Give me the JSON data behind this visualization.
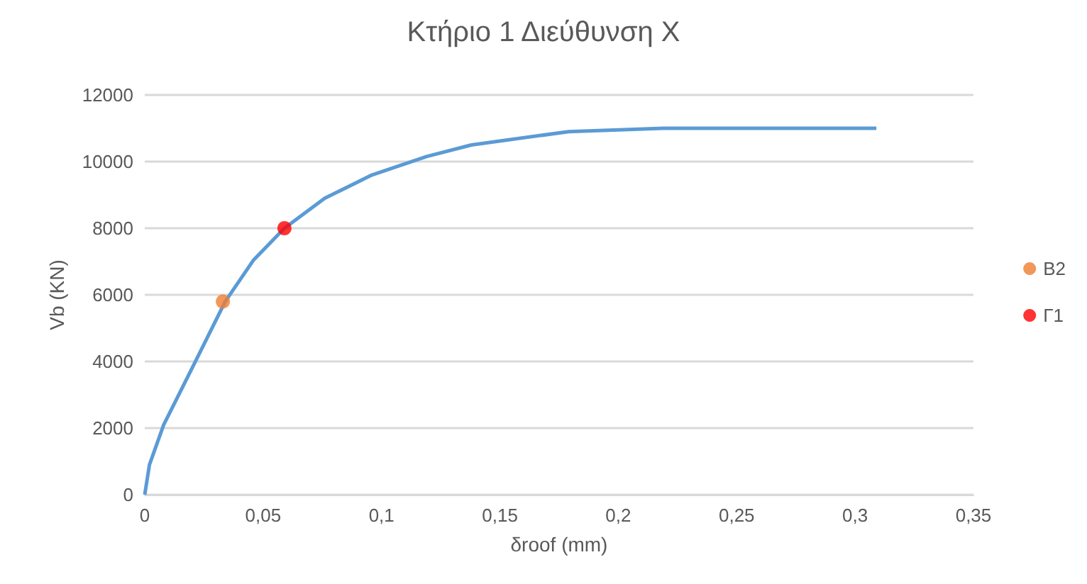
{
  "chart_data": {
    "type": "line",
    "title": "Κτήριο 1 Διεύθυνση Χ",
    "xlabel": "δroof (mm)",
    "ylabel": "Vb (KN)",
    "series": [
      {
        "marker": "none",
        "color": "#5b9bd5",
        "x": [
          0,
          0.002,
          0.008,
          0.02,
          0.034,
          0.046,
          0.059,
          0.076,
          0.096,
          0.119,
          0.138,
          0.179,
          0.219,
          0.258,
          0.279,
          0.309
        ],
        "values": [
          0,
          900,
          2100,
          3800,
          5800,
          7050,
          8000,
          8900,
          9600,
          10150,
          10500,
          10900,
          11000,
          11000,
          11000,
          11000
        ]
      },
      {
        "type": "scatter",
        "marker": "circle",
        "name": "Β2",
        "color": "#ed7d31",
        "x": [
          0.033
        ],
        "values": [
          5800
        ]
      },
      {
        "type": "scatter",
        "marker": "circle",
        "name": "Γ1",
        "color": "#ff0000",
        "x": [
          0.059
        ],
        "values": [
          8000
        ]
      }
    ],
    "xlim": [
      0,
      0.35
    ],
    "xticks": [
      0,
      {
        "value": 0.05,
        "label": "0,05"
      },
      {
        "value": 0.1,
        "label": "0,1"
      },
      {
        "value": 0.15,
        "label": "0,15"
      },
      {
        "value": 0.2,
        "label": "0,2"
      },
      {
        "value": 0.25,
        "label": "0,25"
      },
      {
        "value": 0.3,
        "label": "0,3"
      },
      {
        "value": 0.35,
        "label": "0,35"
      }
    ],
    "ylim": [
      0,
      12000
    ],
    "yticks": [
      0,
      2000,
      4000,
      6000,
      8000,
      10000,
      12000
    ],
    "grid": "y",
    "legend": "right"
  }
}
